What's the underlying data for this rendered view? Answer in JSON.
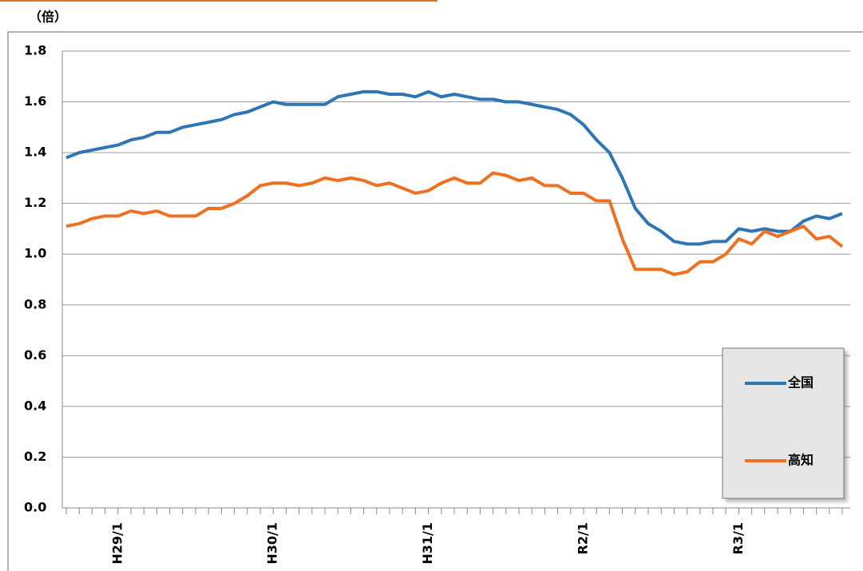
{
  "chart_data": {
    "type": "line",
    "y_label": "（倍）",
    "categories": [
      null,
      null,
      null,
      null,
      "H29/1",
      null,
      null,
      null,
      null,
      null,
      null,
      null,
      null,
      null,
      null,
      null,
      "H30/1",
      null,
      null,
      null,
      null,
      null,
      null,
      null,
      null,
      null,
      null,
      null,
      "H31/1",
      null,
      null,
      null,
      null,
      null,
      null,
      null,
      null,
      null,
      null,
      null,
      "R2/1",
      null,
      null,
      null,
      null,
      null,
      null,
      null,
      null,
      null,
      null,
      null,
      "R3/1",
      null,
      null,
      null,
      null,
      null,
      null,
      null,
      null
    ],
    "series": [
      {
        "name": "全国",
        "color": "#2e75b6",
        "values": [
          1.38,
          1.4,
          1.41,
          1.42,
          1.43,
          1.45,
          1.46,
          1.48,
          1.48,
          1.5,
          1.51,
          1.52,
          1.53,
          1.55,
          1.56,
          1.58,
          1.6,
          1.59,
          1.59,
          1.59,
          1.59,
          1.62,
          1.63,
          1.64,
          1.64,
          1.63,
          1.63,
          1.62,
          1.64,
          1.62,
          1.63,
          1.62,
          1.61,
          1.61,
          1.6,
          1.6,
          1.59,
          1.58,
          1.57,
          1.55,
          1.51,
          1.45,
          1.4,
          1.3,
          1.18,
          1.12,
          1.09,
          1.05,
          1.04,
          1.04,
          1.05,
          1.05,
          1.1,
          1.09,
          1.1,
          1.09,
          1.09,
          1.13,
          1.15,
          1.14,
          1.16
        ]
      },
      {
        "name": "高知",
        "color": "#f07021",
        "values": [
          1.11,
          1.12,
          1.14,
          1.15,
          1.15,
          1.17,
          1.16,
          1.17,
          1.15,
          1.15,
          1.15,
          1.18,
          1.18,
          1.2,
          1.23,
          1.27,
          1.28,
          1.28,
          1.27,
          1.28,
          1.3,
          1.29,
          1.3,
          1.29,
          1.27,
          1.28,
          1.26,
          1.24,
          1.25,
          1.28,
          1.3,
          1.28,
          1.28,
          1.32,
          1.31,
          1.29,
          1.3,
          1.27,
          1.27,
          1.24,
          1.24,
          1.21,
          1.21,
          1.06,
          0.94,
          0.94,
          0.94,
          0.92,
          0.93,
          0.97,
          0.97,
          1.0,
          1.06,
          1.04,
          1.09,
          1.07,
          1.09,
          1.11,
          1.06,
          1.07,
          1.03
        ]
      }
    ],
    "ylim": [
      0,
      1.8
    ],
    "yticks": [
      {
        "value": 0,
        "label": "0.0"
      },
      0.2,
      0.4,
      0.6,
      0.8,
      {
        "value": 1,
        "label": "1.0"
      },
      1.2,
      1.4,
      1.6,
      1.8
    ],
    "grid": true,
    "legend": "right"
  }
}
